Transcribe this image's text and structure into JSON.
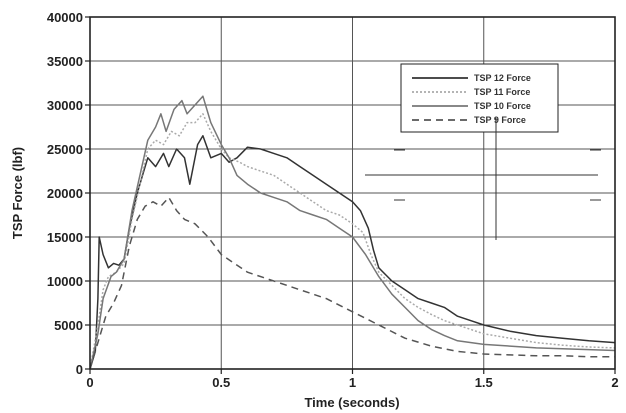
{
  "chart_data": {
    "type": "line",
    "title": "",
    "xlabel": "Time (seconds)",
    "ylabel": "TSP Force (lbf)",
    "xlim": [
      0,
      2
    ],
    "ylim": [
      0,
      40000
    ],
    "x_ticks": [
      "0",
      "0.5",
      "1",
      "1.5",
      "2"
    ],
    "y_ticks": [
      "0",
      "5000",
      "10000",
      "15000",
      "20000",
      "25000",
      "30000",
      "35000",
      "40000"
    ],
    "grid": true,
    "legend_position": "top-right",
    "series": [
      {
        "name": "TSP 12 Force",
        "color": "#333333",
        "dash": "solid",
        "points": [
          [
            0,
            0
          ],
          [
            0.02,
            2000
          ],
          [
            0.03,
            8000
          ],
          [
            0.035,
            15000
          ],
          [
            0.05,
            13000
          ],
          [
            0.07,
            11500
          ],
          [
            0.09,
            12000
          ],
          [
            0.11,
            11800
          ],
          [
            0.13,
            12500
          ],
          [
            0.15,
            16000
          ],
          [
            0.18,
            20000
          ],
          [
            0.2,
            22000
          ],
          [
            0.22,
            24000
          ],
          [
            0.25,
            23000
          ],
          [
            0.28,
            24500
          ],
          [
            0.3,
            23000
          ],
          [
            0.33,
            25000
          ],
          [
            0.36,
            24000
          ],
          [
            0.38,
            21000
          ],
          [
            0.41,
            25500
          ],
          [
            0.43,
            26500
          ],
          [
            0.46,
            24000
          ],
          [
            0.5,
            24500
          ],
          [
            0.53,
            23500
          ],
          [
            0.56,
            24000
          ],
          [
            0.6,
            25200
          ],
          [
            0.65,
            25000
          ],
          [
            0.7,
            24500
          ],
          [
            0.75,
            24000
          ],
          [
            0.8,
            23000
          ],
          [
            0.85,
            22000
          ],
          [
            0.9,
            21000
          ],
          [
            0.95,
            20000
          ],
          [
            1.0,
            19000
          ],
          [
            1.03,
            18000
          ],
          [
            1.06,
            16000
          ],
          [
            1.08,
            13500
          ],
          [
            1.1,
            11500
          ],
          [
            1.15,
            10000
          ],
          [
            1.2,
            9000
          ],
          [
            1.25,
            8000
          ],
          [
            1.3,
            7500
          ],
          [
            1.35,
            7000
          ],
          [
            1.4,
            6000
          ],
          [
            1.45,
            5500
          ],
          [
            1.5,
            5000
          ],
          [
            1.6,
            4300
          ],
          [
            1.7,
            3800
          ],
          [
            1.8,
            3500
          ],
          [
            1.9,
            3200
          ],
          [
            2.0,
            3000
          ]
        ]
      },
      {
        "name": "TSP 11 Force",
        "color": "#aaaaaa",
        "dash": "dot",
        "points": [
          [
            0,
            0
          ],
          [
            0.03,
            5000
          ],
          [
            0.05,
            9000
          ],
          [
            0.07,
            10500
          ],
          [
            0.1,
            11000
          ],
          [
            0.13,
            12000
          ],
          [
            0.16,
            17000
          ],
          [
            0.19,
            21000
          ],
          [
            0.22,
            25000
          ],
          [
            0.25,
            26000
          ],
          [
            0.28,
            25500
          ],
          [
            0.31,
            27000
          ],
          [
            0.34,
            26500
          ],
          [
            0.37,
            28000
          ],
          [
            0.4,
            28000
          ],
          [
            0.43,
            29000
          ],
          [
            0.46,
            27000
          ],
          [
            0.5,
            25000
          ],
          [
            0.53,
            24000
          ],
          [
            0.57,
            23500
          ],
          [
            0.6,
            23000
          ],
          [
            0.65,
            22500
          ],
          [
            0.7,
            22000
          ],
          [
            0.75,
            21000
          ],
          [
            0.8,
            20000
          ],
          [
            0.85,
            19000
          ],
          [
            0.9,
            18000
          ],
          [
            0.95,
            17500
          ],
          [
            1.0,
            16500
          ],
          [
            1.04,
            15500
          ],
          [
            1.07,
            13000
          ],
          [
            1.1,
            11000
          ],
          [
            1.15,
            9500
          ],
          [
            1.2,
            8000
          ],
          [
            1.25,
            7000
          ],
          [
            1.3,
            6200
          ],
          [
            1.35,
            5500
          ],
          [
            1.4,
            5000
          ],
          [
            1.45,
            4500
          ],
          [
            1.5,
            4000
          ],
          [
            1.6,
            3500
          ],
          [
            1.7,
            3000
          ],
          [
            1.8,
            2700
          ],
          [
            1.9,
            2500
          ],
          [
            2.0,
            2400
          ]
        ]
      },
      {
        "name": "TSP 10 Force",
        "color": "#777777",
        "dash": "solid",
        "points": [
          [
            0,
            0
          ],
          [
            0.03,
            4000
          ],
          [
            0.05,
            8000
          ],
          [
            0.08,
            10500
          ],
          [
            0.1,
            11000
          ],
          [
            0.13,
            12500
          ],
          [
            0.16,
            18000
          ],
          [
            0.19,
            22000
          ],
          [
            0.22,
            26000
          ],
          [
            0.25,
            27500
          ],
          [
            0.27,
            29000
          ],
          [
            0.29,
            27000
          ],
          [
            0.32,
            29500
          ],
          [
            0.35,
            30500
          ],
          [
            0.37,
            29000
          ],
          [
            0.4,
            30000
          ],
          [
            0.43,
            31000
          ],
          [
            0.46,
            28000
          ],
          [
            0.5,
            25500
          ],
          [
            0.53,
            24000
          ],
          [
            0.56,
            22000
          ],
          [
            0.6,
            21000
          ],
          [
            0.65,
            20000
          ],
          [
            0.7,
            19500
          ],
          [
            0.75,
            19000
          ],
          [
            0.8,
            18000
          ],
          [
            0.85,
            17500
          ],
          [
            0.9,
            17000
          ],
          [
            0.95,
            16000
          ],
          [
            1.0,
            15000
          ],
          [
            1.05,
            13000
          ],
          [
            1.1,
            10500
          ],
          [
            1.15,
            8500
          ],
          [
            1.2,
            7000
          ],
          [
            1.25,
            5500
          ],
          [
            1.3,
            4500
          ],
          [
            1.35,
            3800
          ],
          [
            1.4,
            3200
          ],
          [
            1.5,
            2800
          ],
          [
            1.6,
            2600
          ],
          [
            1.7,
            2400
          ],
          [
            1.8,
            2300
          ],
          [
            1.9,
            2200
          ],
          [
            2.0,
            2100
          ]
        ]
      },
      {
        "name": "TSP 9 Force",
        "color": "#555555",
        "dash": "dash",
        "points": [
          [
            0,
            0
          ],
          [
            0.03,
            3000
          ],
          [
            0.06,
            6000
          ],
          [
            0.09,
            7500
          ],
          [
            0.12,
            9500
          ],
          [
            0.15,
            14000
          ],
          [
            0.18,
            17000
          ],
          [
            0.21,
            18500
          ],
          [
            0.24,
            19000
          ],
          [
            0.27,
            18500
          ],
          [
            0.3,
            19500
          ],
          [
            0.33,
            18000
          ],
          [
            0.36,
            17000
          ],
          [
            0.4,
            16500
          ],
          [
            0.45,
            15000
          ],
          [
            0.5,
            13000
          ],
          [
            0.55,
            12000
          ],
          [
            0.6,
            11000
          ],
          [
            0.7,
            10000
          ],
          [
            0.8,
            9000
          ],
          [
            0.9,
            8000
          ],
          [
            1.0,
            6500
          ],
          [
            1.1,
            5000
          ],
          [
            1.2,
            3500
          ],
          [
            1.3,
            2600
          ],
          [
            1.4,
            2000
          ],
          [
            1.5,
            1700
          ],
          [
            1.6,
            1600
          ],
          [
            1.7,
            1500
          ],
          [
            1.8,
            1500
          ],
          [
            1.9,
            1400
          ],
          [
            2.0,
            1400
          ]
        ]
      }
    ]
  }
}
